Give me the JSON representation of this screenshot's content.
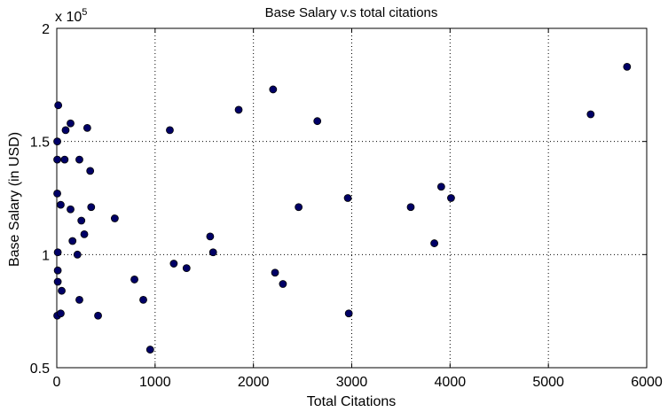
{
  "chart_data": {
    "type": "scatter",
    "title": "Base Salary v.s total citations",
    "xlabel": "Total Citations",
    "ylabel": "Base Salary (in USD)",
    "xlim": [
      0,
      6000
    ],
    "ylim": [
      0.5,
      2
    ],
    "x_ticks": [
      "0",
      "1000",
      "2000",
      "3000",
      "4000",
      "5000",
      "6000"
    ],
    "x_tick_values": [
      0,
      1000,
      2000,
      3000,
      4000,
      5000,
      6000
    ],
    "y_ticks": [
      "0.5",
      "1",
      "1.5",
      "2"
    ],
    "y_tick_values": [
      0.5,
      1,
      1.5,
      2
    ],
    "y_multiplier_base": "x 10",
    "y_multiplier_exponent": "5",
    "grid": true,
    "marker_color": "#000066",
    "points": [
      {
        "x": 5,
        "y": 0.73
      },
      {
        "x": 10,
        "y": 0.88
      },
      {
        "x": 10,
        "y": 0.93
      },
      {
        "x": 10,
        "y": 1.01
      },
      {
        "x": 5,
        "y": 1.27
      },
      {
        "x": 5,
        "y": 1.42
      },
      {
        "x": 5,
        "y": 1.5
      },
      {
        "x": 15,
        "y": 1.66
      },
      {
        "x": 40,
        "y": 0.74
      },
      {
        "x": 50,
        "y": 0.84
      },
      {
        "x": 40,
        "y": 1.22
      },
      {
        "x": 80,
        "y": 1.42
      },
      {
        "x": 90,
        "y": 1.55
      },
      {
        "x": 140,
        "y": 1.58
      },
      {
        "x": 140,
        "y": 1.2
      },
      {
        "x": 160,
        "y": 1.06
      },
      {
        "x": 210,
        "y": 1.0
      },
      {
        "x": 230,
        "y": 0.8
      },
      {
        "x": 230,
        "y": 1.42
      },
      {
        "x": 250,
        "y": 1.15
      },
      {
        "x": 280,
        "y": 1.09
      },
      {
        "x": 310,
        "y": 1.56
      },
      {
        "x": 340,
        "y": 1.37
      },
      {
        "x": 350,
        "y": 1.21
      },
      {
        "x": 420,
        "y": 0.73
      },
      {
        "x": 590,
        "y": 1.16
      },
      {
        "x": 790,
        "y": 0.89
      },
      {
        "x": 880,
        "y": 0.8
      },
      {
        "x": 950,
        "y": 0.58
      },
      {
        "x": 1150,
        "y": 1.55
      },
      {
        "x": 1190,
        "y": 0.96
      },
      {
        "x": 1320,
        "y": 0.94
      },
      {
        "x": 1560,
        "y": 1.08
      },
      {
        "x": 1590,
        "y": 1.01
      },
      {
        "x": 1850,
        "y": 1.64
      },
      {
        "x": 2200,
        "y": 1.73
      },
      {
        "x": 2220,
        "y": 0.92
      },
      {
        "x": 2300,
        "y": 0.87
      },
      {
        "x": 2460,
        "y": 1.21
      },
      {
        "x": 2650,
        "y": 1.59
      },
      {
        "x": 2960,
        "y": 1.25
      },
      {
        "x": 2970,
        "y": 0.74
      },
      {
        "x": 3600,
        "y": 1.21
      },
      {
        "x": 3840,
        "y": 1.05
      },
      {
        "x": 3910,
        "y": 1.3
      },
      {
        "x": 4010,
        "y": 1.25
      },
      {
        "x": 5430,
        "y": 1.62
      },
      {
        "x": 5800,
        "y": 1.83
      }
    ]
  }
}
